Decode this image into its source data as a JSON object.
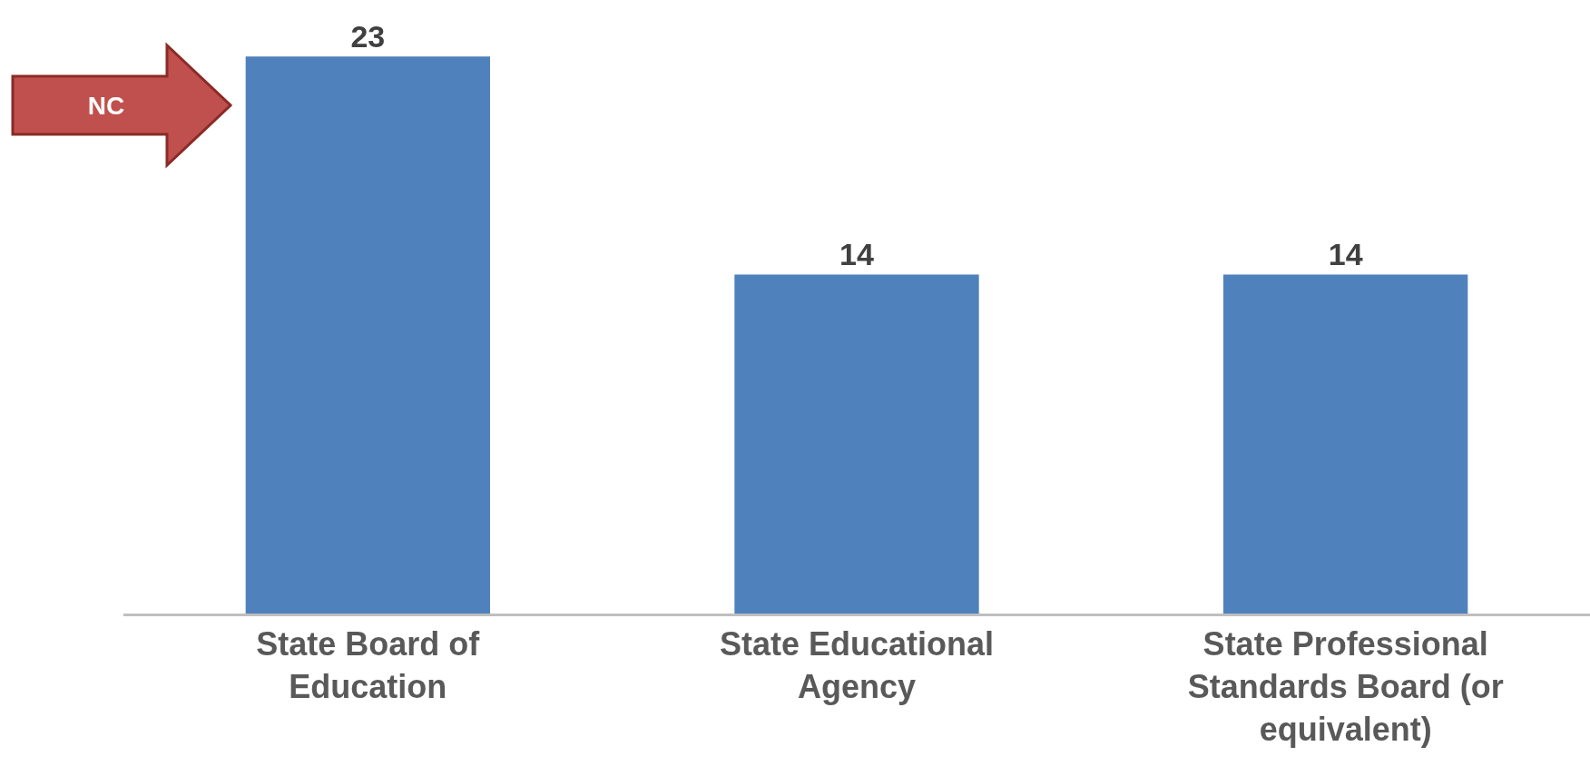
{
  "chart_data": {
    "type": "bar",
    "categories": [
      "State Board of Education",
      "State Educational Agency",
      "State Professional Standards Board (or equivalent)"
    ],
    "values": [
      23,
      14,
      14
    ],
    "color": "#4f81bd",
    "tick_labels": "x",
    "data_labels": true,
    "annotations": [
      "NC"
    ]
  }
}
